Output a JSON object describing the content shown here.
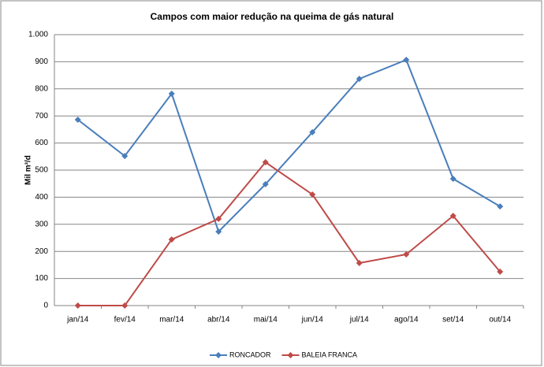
{
  "chart_data": {
    "type": "line",
    "title": "Campos com maior redução na queima de gás natural",
    "y_label": "Mil m³/d",
    "categories": [
      "jan/14",
      "fev/14",
      "mar/14",
      "abr/14",
      "mai/14",
      "jun/14",
      "jul/14",
      "ago/14",
      "set/14",
      "out/14"
    ],
    "series": [
      {
        "name": "RONCADOR",
        "color": "#4a7ebb",
        "values": [
          686,
          552,
          782,
          273,
          448,
          640,
          837,
          907,
          468,
          366
        ]
      },
      {
        "name": "BALEIA FRANCA",
        "color": "#be4b48",
        "values": [
          0,
          0,
          244,
          320,
          529,
          410,
          157,
          189,
          331,
          125
        ]
      }
    ],
    "ylim": [
      0,
      1000
    ],
    "yticks": [
      0,
      100,
      200,
      300,
      400,
      500,
      600,
      700,
      800,
      900,
      {
        "value": 1000,
        "label": "1.000"
      }
    ],
    "grid": true,
    "legend": "bottom"
  }
}
